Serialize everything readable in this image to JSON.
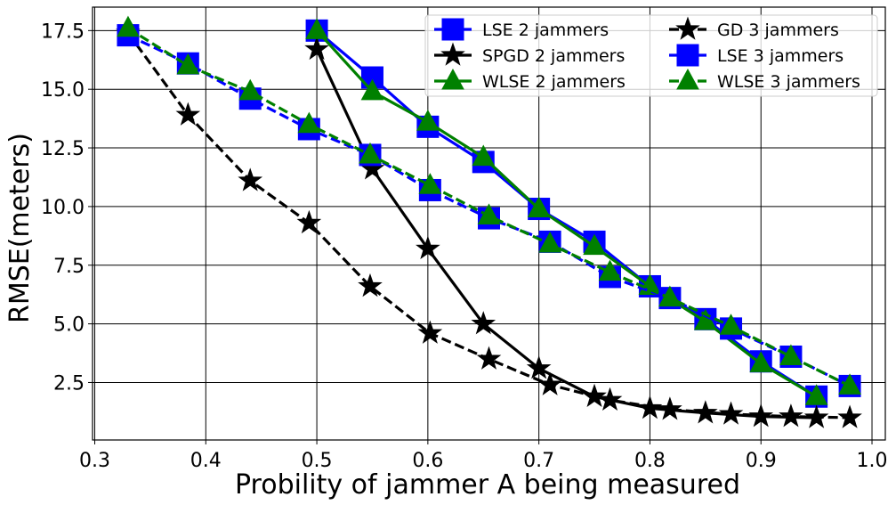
{
  "chart_data": {
    "type": "line",
    "title": "",
    "xlabel": "Probility of jammer A being measured",
    "ylabel": "RMSE(meters)",
    "xlim": [
      0.298,
      1.012
    ],
    "ylim": [
      0.05,
      18.5
    ],
    "xticks": [
      0.3,
      0.4,
      0.5,
      0.6,
      0.7,
      0.8,
      0.9,
      1.0
    ],
    "xtick_labels": [
      "0.3",
      "0.4",
      "0.5",
      "0.6",
      "0.7",
      "0.8",
      "0.9",
      "1.0"
    ],
    "yticks": [
      2.5,
      5.0,
      7.5,
      10.0,
      12.5,
      15.0,
      17.5
    ],
    "ytick_labels": [
      "2.5",
      "5.0",
      "7.5",
      "10.0",
      "12.5",
      "15.0",
      "17.5"
    ],
    "grid": true,
    "legend_position": "top-right",
    "series": [
      {
        "name": "LSE 2 jammers",
        "color": "#0000ff",
        "line_color": "#0000ff",
        "marker": "square",
        "dash": "solid",
        "x": [
          0.5,
          0.55,
          0.6,
          0.65,
          0.7,
          0.75,
          0.8,
          0.85,
          0.9,
          0.95
        ],
        "y": [
          17.5,
          15.5,
          13.4,
          11.9,
          9.9,
          8.5,
          6.6,
          5.2,
          3.4,
          1.9
        ]
      },
      {
        "name": "SPGD 2 jammers",
        "color": "#000000",
        "line_color": "#000000",
        "marker": "star",
        "dash": "solid",
        "x": [
          0.5,
          0.55,
          0.6,
          0.65,
          0.7,
          0.75,
          0.8,
          0.85,
          0.9,
          0.95
        ],
        "y": [
          16.7,
          11.6,
          8.2,
          5.0,
          3.1,
          1.9,
          1.4,
          1.2,
          1.05,
          1.0
        ]
      },
      {
        "name": "WLSE 2 jammers",
        "color": "#008000",
        "line_color": "#008000",
        "marker": "triangle",
        "dash": "solid",
        "x": [
          0.5,
          0.55,
          0.6,
          0.65,
          0.7,
          0.75,
          0.8,
          0.85,
          0.9,
          0.95
        ],
        "y": [
          17.5,
          14.9,
          13.6,
          12.1,
          9.9,
          8.3,
          6.6,
          5.1,
          3.3,
          1.9
        ]
      },
      {
        "name": "GD 3 jammers",
        "color": "#000000",
        "line_color": "#000000",
        "marker": "star",
        "dash": "dashed",
        "x": [
          0.33,
          0.384,
          0.44,
          0.493,
          0.548,
          0.602,
          0.655,
          0.71,
          0.764,
          0.818,
          0.873,
          0.927,
          0.98
        ],
        "y": [
          17.4,
          13.9,
          11.1,
          9.3,
          6.6,
          4.6,
          3.5,
          2.4,
          1.75,
          1.35,
          1.15,
          1.05,
          1.0
        ]
      },
      {
        "name": "LSE 3 jammers",
        "color": "#0000ff",
        "line_color": "#0000ff",
        "marker": "square",
        "dash": "dashed",
        "x": [
          0.33,
          0.384,
          0.44,
          0.493,
          0.548,
          0.602,
          0.655,
          0.71,
          0.764,
          0.818,
          0.873,
          0.927,
          0.98
        ],
        "y": [
          17.3,
          16.1,
          14.6,
          13.3,
          12.2,
          10.7,
          9.5,
          8.5,
          7.0,
          6.1,
          4.8,
          3.6,
          2.35
        ]
      },
      {
        "name": "WLSE 3 jammers",
        "color": "#008000",
        "line_color": "#008000",
        "marker": "triangle",
        "dash": "dashed",
        "x": [
          0.33,
          0.384,
          0.44,
          0.493,
          0.548,
          0.602,
          0.655,
          0.71,
          0.764,
          0.818,
          0.873,
          0.927,
          0.98
        ],
        "y": [
          17.6,
          16.0,
          14.9,
          13.5,
          12.2,
          10.9,
          9.6,
          8.4,
          7.2,
          6.1,
          4.9,
          3.6,
          2.35
        ]
      }
    ]
  }
}
